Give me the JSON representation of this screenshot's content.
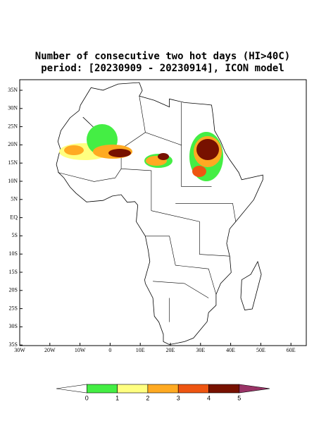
{
  "header": {
    "title_line1": "Number of consecutive two hot days (HI>40C)",
    "title_line2": "period: [20230909 - 20230914], ICON model"
  },
  "map": {
    "lat_labels": [
      "35N",
      "30N",
      "25N",
      "20N",
      "15N",
      "10N",
      "5N",
      "EQ",
      "5S",
      "10S",
      "15S",
      "20S",
      "25S",
      "30S",
      "35S"
    ],
    "lon_labels": [
      "30W",
      "20W",
      "10W",
      "0",
      "10E",
      "20E",
      "30E",
      "40E",
      "50E",
      "60E"
    ]
  },
  "colorbar": {
    "labels": [
      "0",
      "1",
      "2",
      "3",
      "4",
      "5"
    ],
    "colors": [
      "#ffffff",
      "#44ee44",
      "#ffff80",
      "#ffaa22",
      "#ee5511",
      "#771100",
      "#993366"
    ]
  }
}
